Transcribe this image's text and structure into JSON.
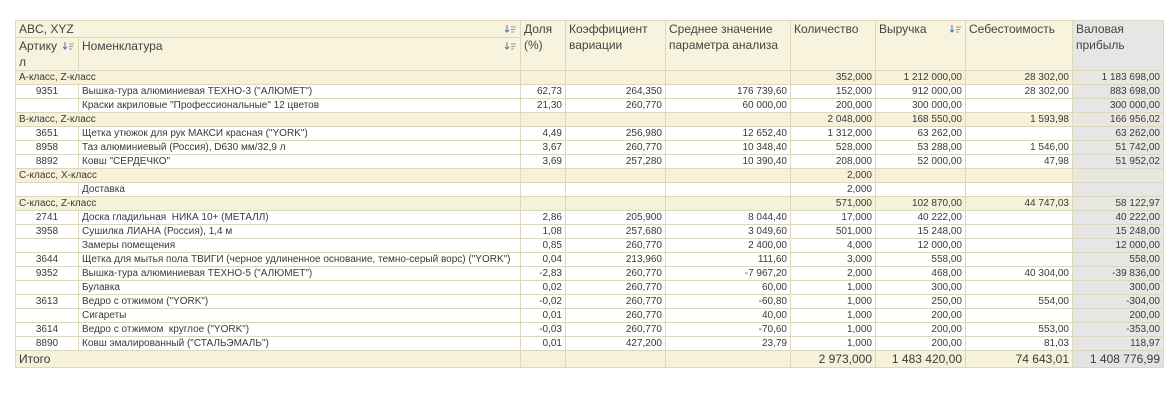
{
  "header": {
    "group_title": "ABC, XYZ",
    "columns": [
      "Артикул",
      "Номенклатура",
      "Доля (%)",
      "Коэффициент вариации",
      "Среднее значение параметра анализа",
      "Количество",
      "Выручка",
      "Себестоимость",
      "Валовая прибыль"
    ]
  },
  "groups": [
    {
      "label": "А-класс, Z-класс",
      "totals": [
        "352,000",
        "1 212 000,00",
        "28 302,00",
        "1 183 698,00"
      ],
      "rows": [
        [
          "9351",
          "Вышка-тура алюминиевая ТЕХНО-3 (\"АЛЮМЕТ\")",
          "62,73",
          "264,350",
          "176 739,60",
          "152,000",
          "912 000,00",
          "28 302,00",
          "883 698,00"
        ],
        [
          null,
          "Краски акриловые \"Профессиональные\" 12 цветов",
          "21,30",
          "260,770",
          "60 000,00",
          "200,000",
          "300 000,00",
          null,
          "300 000,00"
        ]
      ]
    },
    {
      "label": "В-класс, Z-класс",
      "totals": [
        "2 048,000",
        "168 550,00",
        "1 593,98",
        "166 956,02"
      ],
      "rows": [
        [
          "3651",
          "Щетка утюжок для рук МАКСИ красная (\"YORK\")",
          "4,49",
          "256,980",
          "12 652,40",
          "1 312,000",
          "63 262,00",
          null,
          "63 262,00"
        ],
        [
          "8958",
          "Таз алюминиевый (Россия), D630 мм/32,9 л",
          "3,67",
          "260,770",
          "10 348,40",
          "528,000",
          "53 288,00",
          "1 546,00",
          "51 742,00"
        ],
        [
          "8892",
          "Ковш \"СЕРДЕЧКО\"",
          "3,69",
          "257,280",
          "10 390,40",
          "208,000",
          "52 000,00",
          "47,98",
          "51 952,02"
        ]
      ]
    },
    {
      "label": "С-класс, Х-класс",
      "totals": [
        "2,000",
        null,
        null,
        null
      ],
      "rows": [
        [
          null,
          "Доставка",
          null,
          null,
          null,
          "2,000",
          null,
          null,
          null
        ]
      ]
    },
    {
      "label": "С-класс, Z-класс",
      "totals": [
        "571,000",
        "102 870,00",
        "44 747,03",
        "58 122,97"
      ],
      "rows": [
        [
          "2741",
          "Доска гладильная  НИКА 10+ (МЕТАЛЛ)",
          "2,86",
          "205,900",
          "8 044,40",
          "17,000",
          "40 222,00",
          null,
          "40 222,00"
        ],
        [
          "3958",
          "Сушилка ЛИАНА (Россия), 1,4 м",
          "1,08",
          "257,680",
          "3 049,60",
          "501,000",
          "15 248,00",
          null,
          "15 248,00"
        ],
        [
          null,
          "Замеры помещения",
          "0,85",
          "260,770",
          "2 400,00",
          "4,000",
          "12 000,00",
          null,
          "12 000,00"
        ],
        [
          "3644",
          "Щетка для мытья пола ТВИГИ (черное удлиненное основание, темно-серый ворс) (\"YORK\")",
          "0,04",
          "213,960",
          "111,60",
          "3,000",
          "558,00",
          null,
          "558,00"
        ],
        [
          "9352",
          "Вышка-тура алюминиевая ТЕХНО-5 (\"АЛЮМЕТ\")",
          "-2,83",
          "260,770",
          "-7 967,20",
          "2,000",
          "468,00",
          "40 304,00",
          "-39 836,00"
        ],
        [
          null,
          "Булавка",
          "0,02",
          "260,770",
          "60,00",
          "1,000",
          "300,00",
          null,
          "300,00"
        ],
        [
          "3613",
          "Ведро с отжимом (\"YORK\")",
          "-0,02",
          "260,770",
          "-60,80",
          "1,000",
          "250,00",
          "554,00",
          "-304,00"
        ],
        [
          null,
          "Сигареты",
          "0,01",
          "260,770",
          "40,00",
          "1,000",
          "200,00",
          null,
          "200,00"
        ],
        [
          "3614",
          "Ведро с отжимом  круглое (\"YORK\")",
          "-0,03",
          "260,770",
          "-70,60",
          "1,000",
          "200,00",
          "553,00",
          "-353,00"
        ],
        [
          "8890",
          "Ковш эмалированный (\"СТАЛЬЭМАЛЬ\")",
          "0,01",
          "427,200",
          "23,79",
          "1,000",
          "200,00",
          "81,03",
          "118,97"
        ]
      ]
    }
  ],
  "total": {
    "label": "Итого",
    "values": [
      "2 973,000",
      "1 483 420,00",
      "74 643,01",
      "1 408 776,99"
    ]
  }
}
